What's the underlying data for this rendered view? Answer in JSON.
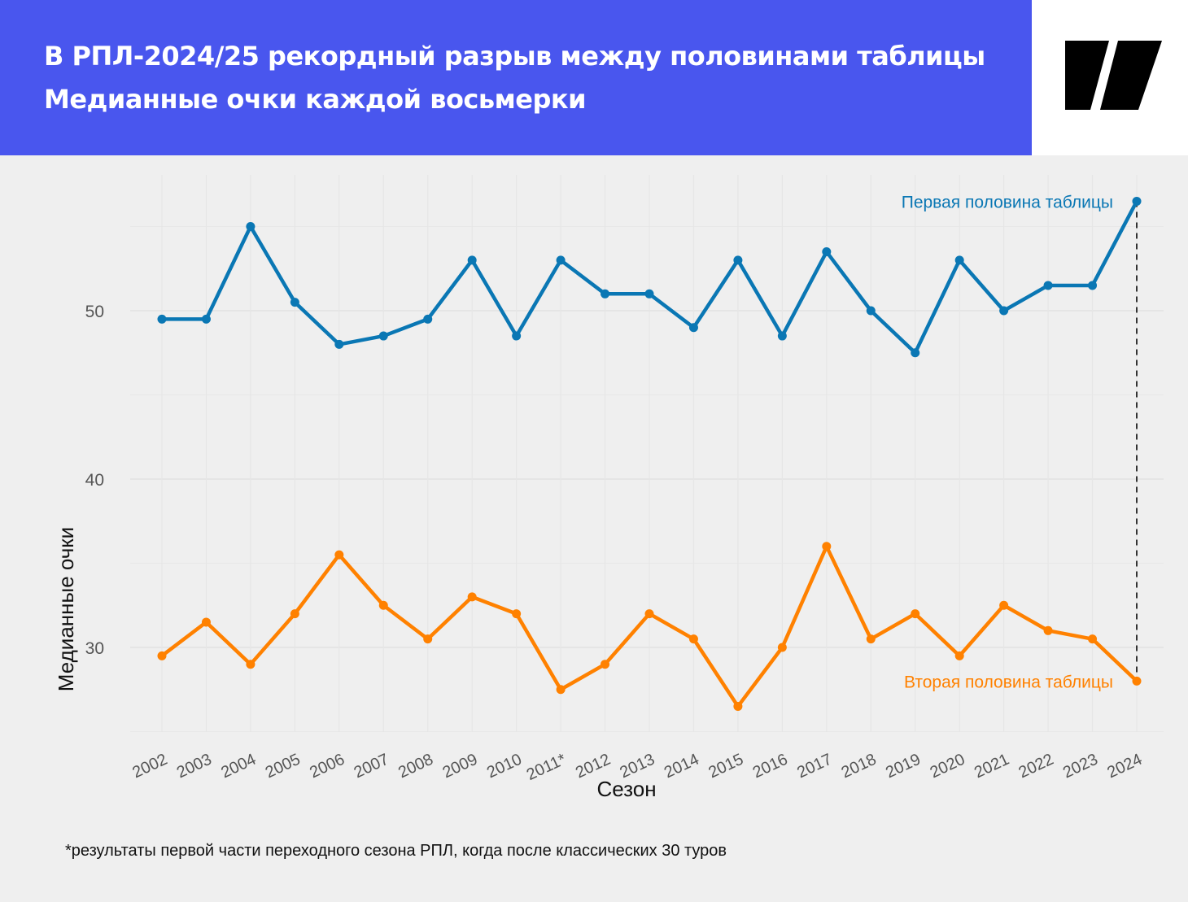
{
  "header": {
    "title": "В РПЛ-2024/25 рекордный разрыв между половинами таблицы",
    "subtitle": "Медианные очки каждой восьмерки"
  },
  "logo": {
    "name": "publisher-logo"
  },
  "chart_data": {
    "type": "line",
    "xlabel": "Сезон",
    "ylabel": "Медианные очки",
    "categories": [
      "2002",
      "2003",
      "2004",
      "2005",
      "2006",
      "2007",
      "2008",
      "2009",
      "2010",
      "2011*",
      "2012",
      "2013",
      "2014",
      "2015",
      "2016",
      "2017",
      "2018",
      "2019",
      "2020",
      "2021",
      "2022",
      "2023",
      "2024"
    ],
    "y_ticks": [
      30,
      40,
      50
    ],
    "ylim": [
      25,
      58.5
    ],
    "grid": true,
    "series": [
      {
        "name": "Первая половина таблицы",
        "color": "#0a77b4",
        "values": [
          49.5,
          49.5,
          55,
          50.5,
          48,
          48.5,
          49.5,
          53,
          48.5,
          53,
          51,
          51,
          49,
          53,
          48.5,
          53.5,
          50,
          47.5,
          53,
          50,
          51.5,
          51.5,
          56.5
        ]
      },
      {
        "name": "Вторая половина таблицы",
        "color": "#ff8100",
        "values": [
          29.5,
          31.5,
          29,
          32,
          35.5,
          32.5,
          30.5,
          33,
          32,
          27.5,
          29,
          32,
          30.5,
          26.5,
          30,
          36,
          30.5,
          32,
          29.5,
          32.5,
          31,
          30.5,
          28
        ]
      }
    ],
    "annotation": "dashed line marks the gap in 2024"
  },
  "footnote": "*результаты первой части переходного сезона РПЛ, когда после классических 30 туров"
}
